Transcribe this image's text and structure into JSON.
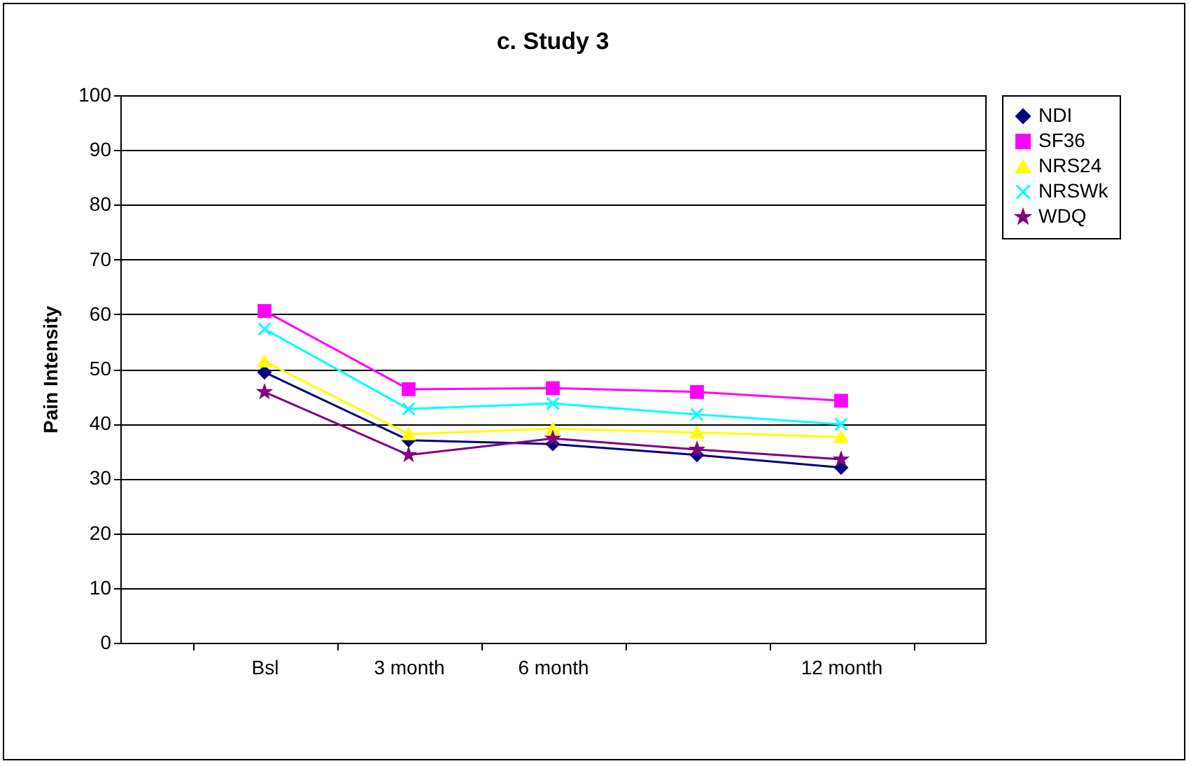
{
  "chart_data": {
    "type": "line",
    "title": "c. Study 3",
    "ylabel": "Pain Intensity",
    "categories": [
      "Bsl",
      "3 month",
      "6 month",
      null,
      "12 month"
    ],
    "series": [
      {
        "name": "NDI",
        "color": "#000080",
        "marker": "diamond",
        "values": [
          49.4,
          37,
          36.3,
          34.3,
          32
        ]
      },
      {
        "name": "SF36",
        "color": "#ff00ff",
        "marker": "square",
        "values": [
          60.6,
          46.3,
          46.5,
          45.8,
          44.2
        ]
      },
      {
        "name": "NRS24",
        "color": "#ffff00",
        "marker": "triangle",
        "values": [
          51.4,
          38.1,
          39.1,
          38.4,
          37.6
        ]
      },
      {
        "name": "NRSWk",
        "color": "#00ffff",
        "marker": "cross",
        "values": [
          57.3,
          42.7,
          43.7,
          41.7,
          39.9
        ]
      },
      {
        "name": "WDQ",
        "color": "#800080",
        "marker": "star",
        "values": [
          45.8,
          34.3,
          37.3,
          35.3,
          33.5
        ]
      }
    ],
    "ylim": [
      0,
      100
    ],
    "yticks": [
      0,
      10,
      20,
      30,
      40,
      50,
      60,
      70,
      80,
      90,
      100
    ],
    "grid": "y",
    "legend": "right",
    "line_style": "solid"
  }
}
